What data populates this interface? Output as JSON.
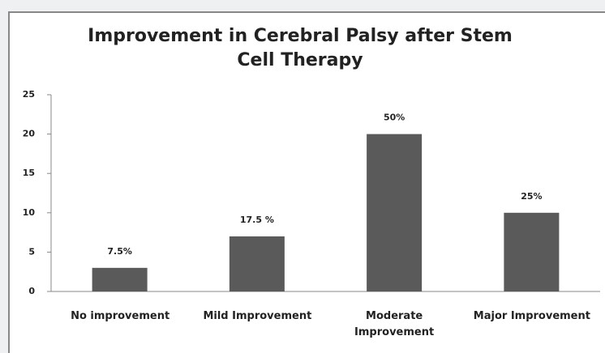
{
  "chart_data": {
    "type": "bar",
    "title": "Improvement  in Cerebral Palsy after Stem Cell Therapy",
    "categories": [
      "No improvement",
      "Mild Improvement",
      "Moderate Improvement",
      "Major Improvement"
    ],
    "values": [
      3,
      7,
      20,
      10
    ],
    "value_labels": [
      "7.5%",
      "17.5 %",
      "50%",
      "25%"
    ],
    "color": "#5a5a5a",
    "ylim": [
      0,
      25
    ],
    "yticks": [
      0,
      5,
      10,
      15,
      20,
      25
    ],
    "grid": false
  }
}
